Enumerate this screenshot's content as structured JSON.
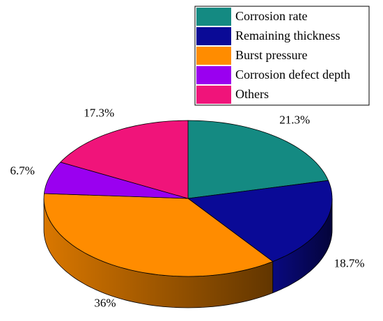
{
  "chart_data": {
    "type": "pie",
    "categories": [
      "Corrosion rate",
      "Remaining thickness",
      "Burst pressure",
      "Corrosion defect depth",
      "Others"
    ],
    "values": [
      21.3,
      18.7,
      36,
      6.7,
      17.3
    ],
    "value_labels": [
      "21.3%",
      "18.7%",
      "36%",
      "6.7%",
      "17.3%"
    ],
    "colors": [
      "#148a82",
      "#0a0a96",
      "#ff8c00",
      "#9a00f0",
      "#f0147a"
    ],
    "legend": "upper right"
  }
}
